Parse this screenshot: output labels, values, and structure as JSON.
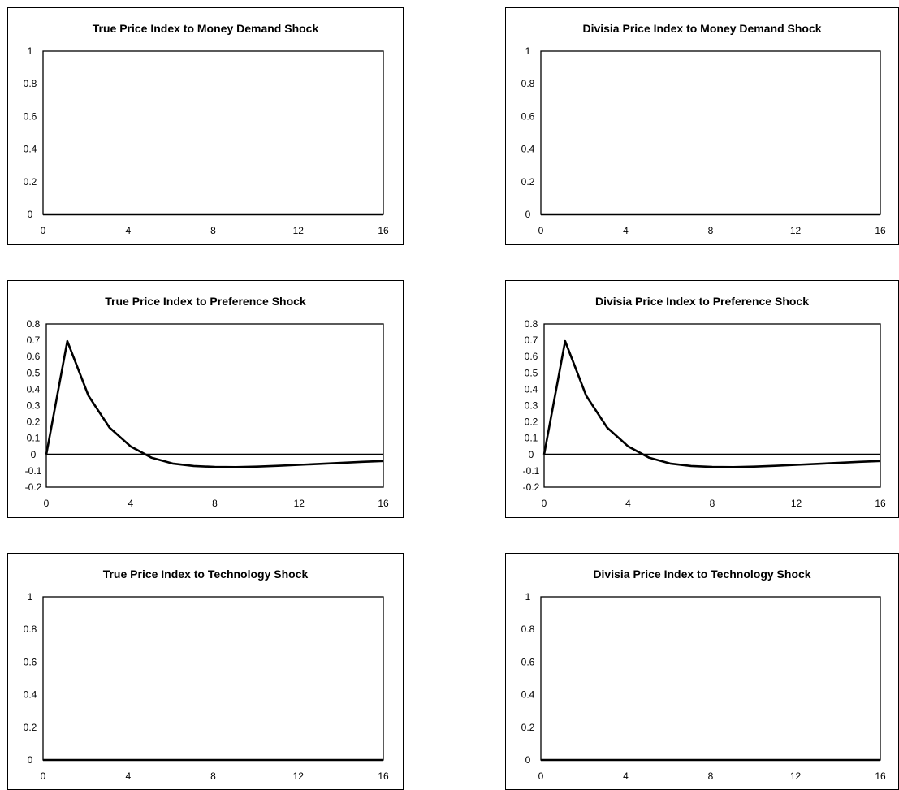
{
  "chart_data": [
    {
      "type": "line",
      "title": "True Price Index to Money Demand Shock",
      "x_ticks": [
        "0",
        "4",
        "8",
        "12",
        "16"
      ],
      "y_ticks": [
        "0",
        "0.2",
        "0.4",
        "0.6",
        "0.8",
        "1"
      ],
      "xlim": [
        0,
        16
      ],
      "ylim": [
        0,
        1
      ],
      "zero_line": false,
      "series": [
        {
          "x": [
            0,
            1,
            2,
            3,
            4,
            5,
            6,
            7,
            8,
            9,
            10,
            11,
            12,
            13,
            14,
            15,
            16
          ],
          "values": [
            0,
            0,
            0,
            0,
            0,
            0,
            0,
            0,
            0,
            0,
            0,
            0,
            0,
            0,
            0,
            0,
            0
          ]
        }
      ]
    },
    {
      "type": "line",
      "title": "Divisia Price Index to Money Demand Shock",
      "x_ticks": [
        "0",
        "4",
        "8",
        "12",
        "16"
      ],
      "y_ticks": [
        "0",
        "0.2",
        "0.4",
        "0.6",
        "0.8",
        "1"
      ],
      "xlim": [
        0,
        16
      ],
      "ylim": [
        0,
        1
      ],
      "zero_line": false,
      "series": [
        {
          "x": [
            0,
            1,
            2,
            3,
            4,
            5,
            6,
            7,
            8,
            9,
            10,
            11,
            12,
            13,
            14,
            15,
            16
          ],
          "values": [
            0,
            0,
            0,
            0,
            0,
            0,
            0,
            0,
            0,
            0,
            0,
            0,
            0,
            0,
            0,
            0,
            0
          ]
        }
      ]
    },
    {
      "type": "line",
      "title": "True Price Index to Preference Shock",
      "x_ticks": [
        "0",
        "4",
        "8",
        "12",
        "16"
      ],
      "y_ticks": [
        "-0.2",
        "-0.1",
        "0",
        "0.1",
        "0.2",
        "0.3",
        "0.4",
        "0.5",
        "0.6",
        "0.7",
        "0.8"
      ],
      "xlim": [
        0,
        16
      ],
      "ylim": [
        -0.2,
        0.8
      ],
      "zero_line": true,
      "series": [
        {
          "x": [
            0,
            1,
            2,
            3,
            4,
            5,
            6,
            7,
            8,
            9,
            10,
            11,
            12,
            13,
            14,
            15,
            16
          ],
          "values": [
            0,
            0.695,
            0.36,
            0.165,
            0.05,
            -0.02,
            -0.055,
            -0.07,
            -0.076,
            -0.077,
            -0.074,
            -0.069,
            -0.063,
            -0.057,
            -0.051,
            -0.045,
            -0.04
          ]
        }
      ]
    },
    {
      "type": "line",
      "title": "Divisia Price Index to Preference Shock",
      "x_ticks": [
        "0",
        "4",
        "8",
        "12",
        "16"
      ],
      "y_ticks": [
        "-0.2",
        "-0.1",
        "0",
        "0.1",
        "0.2",
        "0.3",
        "0.4",
        "0.5",
        "0.6",
        "0.7",
        "0.8"
      ],
      "xlim": [
        0,
        16
      ],
      "ylim": [
        -0.2,
        0.8
      ],
      "zero_line": true,
      "series": [
        {
          "x": [
            0,
            1,
            2,
            3,
            4,
            5,
            6,
            7,
            8,
            9,
            10,
            11,
            12,
            13,
            14,
            15,
            16
          ],
          "values": [
            0,
            0.695,
            0.36,
            0.165,
            0.05,
            -0.02,
            -0.055,
            -0.07,
            -0.076,
            -0.077,
            -0.074,
            -0.069,
            -0.063,
            -0.057,
            -0.051,
            -0.045,
            -0.04
          ]
        }
      ]
    },
    {
      "type": "line",
      "title": "True Price Index to Technology Shock",
      "x_ticks": [
        "0",
        "4",
        "8",
        "12",
        "16"
      ],
      "y_ticks": [
        "0",
        "0.2",
        "0.4",
        "0.6",
        "0.8",
        "1"
      ],
      "xlim": [
        0,
        16
      ],
      "ylim": [
        0,
        1
      ],
      "zero_line": false,
      "series": [
        {
          "x": [
            0,
            1,
            2,
            3,
            4,
            5,
            6,
            7,
            8,
            9,
            10,
            11,
            12,
            13,
            14,
            15,
            16
          ],
          "values": [
            0,
            0,
            0,
            0,
            0,
            0,
            0,
            0,
            0,
            0,
            0,
            0,
            0,
            0,
            0,
            0,
            0
          ]
        }
      ]
    },
    {
      "type": "line",
      "title": "Divisia Price Index to Technology Shock",
      "x_ticks": [
        "0",
        "4",
        "8",
        "12",
        "16"
      ],
      "y_ticks": [
        "0",
        "0.2",
        "0.4",
        "0.6",
        "0.8",
        "1"
      ],
      "xlim": [
        0,
        16
      ],
      "ylim": [
        0,
        1
      ],
      "zero_line": false,
      "series": [
        {
          "x": [
            0,
            1,
            2,
            3,
            4,
            5,
            6,
            7,
            8,
            9,
            10,
            11,
            12,
            13,
            14,
            15,
            16
          ],
          "values": [
            0,
            0,
            0,
            0,
            0,
            0,
            0,
            0,
            0,
            0,
            0,
            0,
            0,
            0,
            0,
            0,
            0
          ]
        }
      ]
    }
  ]
}
